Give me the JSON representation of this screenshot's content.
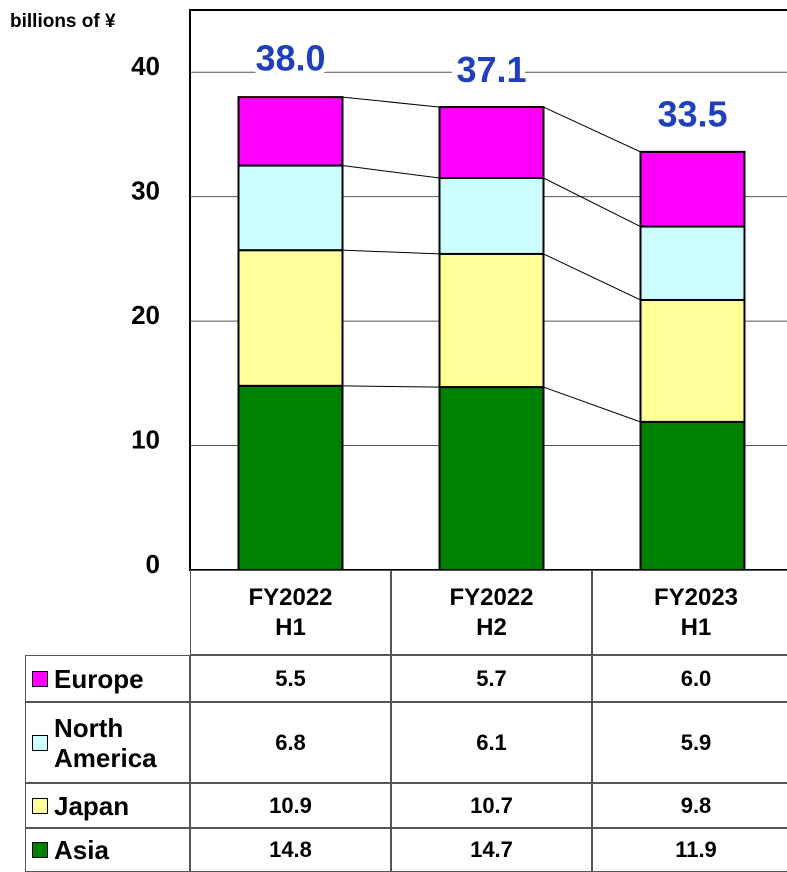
{
  "chart_data": {
    "type": "stacked_bar",
    "y_axis_label": "billions of ¥",
    "categories": [
      "FY2022 H1",
      "FY2022 H2",
      "FY2023 H1"
    ],
    "series": [
      {
        "name": "Asia",
        "color": "#008000",
        "values": [
          14.8,
          14.7,
          11.9
        ],
        "value_labels": [
          "14.8",
          "14.7",
          "11.9"
        ]
      },
      {
        "name": "Japan",
        "color": "#ffff99",
        "values": [
          10.9,
          10.7,
          9.8
        ],
        "value_labels": [
          "10.9",
          "10.7",
          "9.8"
        ]
      },
      {
        "name": "North America",
        "color": "#ccffff",
        "values": [
          6.8,
          6.1,
          5.9
        ],
        "value_labels": [
          "6.8",
          "6.1",
          "5.9"
        ]
      },
      {
        "name": "Europe",
        "color": "#ff00ff",
        "values": [
          5.5,
          5.7,
          6.0
        ],
        "value_labels": [
          "5.5",
          "5.7",
          "6.0"
        ]
      }
    ],
    "totals": [
      38.0,
      37.1,
      33.5
    ],
    "total_labels": [
      "38.0",
      "37.1",
      "33.5"
    ],
    "total_color": "#1f3fbf",
    "ylim": [
      0,
      45
    ],
    "yticks": [
      0,
      10,
      20,
      30,
      40
    ],
    "grid": true
  }
}
